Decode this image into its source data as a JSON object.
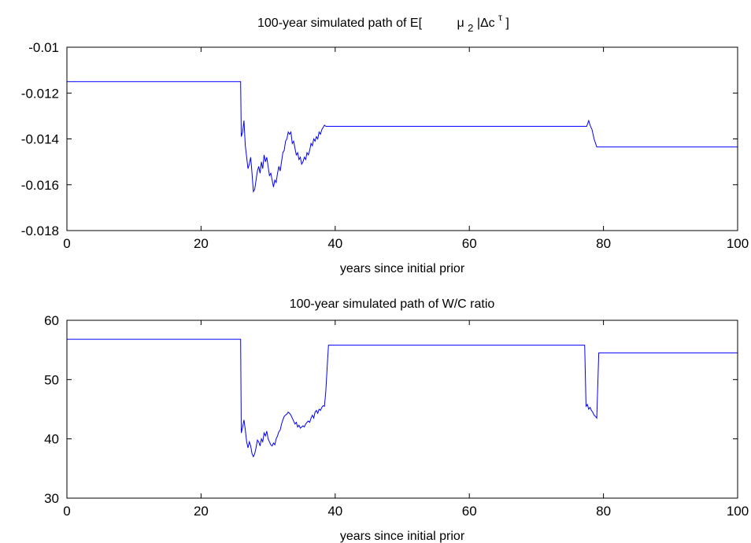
{
  "chart_data": [
    {
      "type": "line",
      "title_prefix": "100-year simulated path of E[",
      "title_mu": "μ",
      "title_mu_sub": "2",
      "title_mid": "|Δc",
      "title_sup": "τ",
      "title_suffix": "]",
      "xlabel": "years since initial prior",
      "ylabel": "",
      "xlim": [
        0,
        100
      ],
      "ylim": [
        -0.018,
        -0.01
      ],
      "xticks": [
        "0",
        "20",
        "40",
        "60",
        "80",
        "100"
      ],
      "yticks": [
        "-0.01",
        "-0.012",
        "-0.014",
        "-0.016",
        "-0.018"
      ],
      "color": "#0000ff",
      "series": [
        {
          "x": [
            0,
            25.9,
            26.0,
            26.2,
            26.4,
            26.6,
            26.8,
            27.0,
            27.2,
            27.4,
            27.6,
            27.8,
            28.0,
            28.2,
            28.4,
            28.6,
            28.8,
            29.0,
            29.2,
            29.4,
            29.6,
            29.8,
            30.0,
            30.2,
            30.4,
            30.6,
            30.8,
            31.0,
            31.2,
            31.4,
            31.6,
            31.8,
            32.0,
            32.2,
            32.4,
            32.6,
            32.8,
            33.0,
            33.2,
            33.4,
            33.6,
            33.8,
            34.0,
            34.2,
            34.4,
            34.6,
            34.8,
            35.0,
            35.2,
            35.4,
            35.6,
            35.8,
            36.0,
            36.2,
            36.4,
            36.6,
            36.8,
            37.0,
            37.2,
            37.4,
            37.6,
            37.8,
            38.0,
            38.2,
            38.4,
            38.6,
            38.8,
            39.0,
            77.5,
            77.8,
            78.0,
            78.3,
            78.6,
            79.0,
            100
          ],
          "y": [
            -0.0115,
            -0.0115,
            -0.0139,
            -0.0137,
            -0.0132,
            -0.0143,
            -0.0148,
            -0.0153,
            -0.0151,
            -0.0148,
            -0.0155,
            -0.0163,
            -0.0162,
            -0.0158,
            -0.0154,
            -0.0152,
            -0.0155,
            -0.015,
            -0.0153,
            -0.0147,
            -0.015,
            -0.0148,
            -0.0152,
            -0.0156,
            -0.0155,
            -0.0158,
            -0.0161,
            -0.0158,
            -0.0159,
            -0.0155,
            -0.0152,
            -0.0154,
            -0.015,
            -0.0146,
            -0.0145,
            -0.0141,
            -0.014,
            -0.0137,
            -0.0138,
            -0.0137,
            -0.0142,
            -0.0141,
            -0.0144,
            -0.0147,
            -0.0146,
            -0.0149,
            -0.0148,
            -0.0151,
            -0.015,
            -0.0148,
            -0.0149,
            -0.0146,
            -0.0147,
            -0.0145,
            -0.0142,
            -0.0143,
            -0.014,
            -0.0141,
            -0.0139,
            -0.014,
            -0.0137,
            -0.0138,
            -0.0136,
            -0.0135,
            -0.0134,
            -0.01345,
            -0.01345,
            -0.01345,
            -0.01345,
            -0.0132,
            -0.0134,
            -0.0136,
            -0.014,
            -0.01435,
            -0.01435
          ]
        }
      ]
    },
    {
      "type": "line",
      "title": "100-year simulated path of W/C ratio",
      "xlabel": "years since initial prior",
      "ylabel": "",
      "xlim": [
        0,
        100
      ],
      "ylim": [
        30,
        60
      ],
      "xticks": [
        "0",
        "20",
        "40",
        "60",
        "80",
        "100"
      ],
      "yticks": [
        "60",
        "50",
        "40",
        "30"
      ],
      "color": "#0000ff",
      "series": [
        {
          "x": [
            0,
            25.9,
            26.0,
            26.2,
            26.4,
            26.6,
            26.8,
            27.0,
            27.2,
            27.4,
            27.6,
            27.8,
            28.0,
            28.2,
            28.4,
            28.6,
            28.8,
            29.0,
            29.2,
            29.4,
            29.6,
            29.8,
            30.0,
            30.2,
            30.4,
            30.6,
            30.8,
            31.0,
            31.2,
            31.4,
            31.6,
            31.8,
            32.0,
            32.2,
            32.4,
            32.6,
            32.8,
            33.0,
            33.2,
            33.4,
            33.6,
            33.8,
            34.0,
            34.2,
            34.4,
            34.6,
            34.8,
            35.0,
            35.2,
            35.4,
            35.6,
            35.8,
            36.0,
            36.2,
            36.4,
            36.6,
            36.8,
            37.0,
            37.2,
            37.4,
            37.6,
            37.8,
            38.0,
            38.2,
            38.4,
            38.6,
            38.8,
            39.0,
            39.2,
            39.4,
            77.2,
            77.4,
            77.6,
            77.8,
            78.0,
            78.2,
            78.4,
            78.6,
            78.8,
            79.0,
            79.3,
            100
          ],
          "y": [
            56.8,
            56.8,
            41.0,
            42.0,
            43.2,
            41.5,
            39.5,
            38.5,
            39.5,
            38.8,
            37.5,
            37.0,
            37.5,
            38.5,
            39.8,
            39.5,
            38.8,
            40.0,
            39.5,
            41.0,
            40.5,
            41.3,
            40.0,
            39.5,
            39.0,
            38.8,
            39.3,
            39.0,
            40.0,
            40.5,
            41.2,
            41.5,
            42.5,
            43.2,
            43.8,
            44.0,
            44.2,
            44.5,
            44.3,
            44.0,
            43.5,
            43.0,
            42.5,
            42.8,
            42.0,
            42.3,
            41.8,
            42.0,
            42.2,
            42.0,
            42.5,
            42.8,
            43.0,
            42.8,
            43.5,
            44.0,
            43.5,
            44.5,
            44.8,
            44.3,
            45.0,
            44.8,
            45.3,
            45.6,
            45.5,
            48.0,
            52.0,
            55.8,
            55.8,
            55.8,
            55.8,
            45.5,
            45.8,
            45.0,
            45.3,
            44.8,
            44.5,
            44.0,
            43.8,
            43.5,
            54.5,
            54.5
          ]
        }
      ]
    }
  ]
}
